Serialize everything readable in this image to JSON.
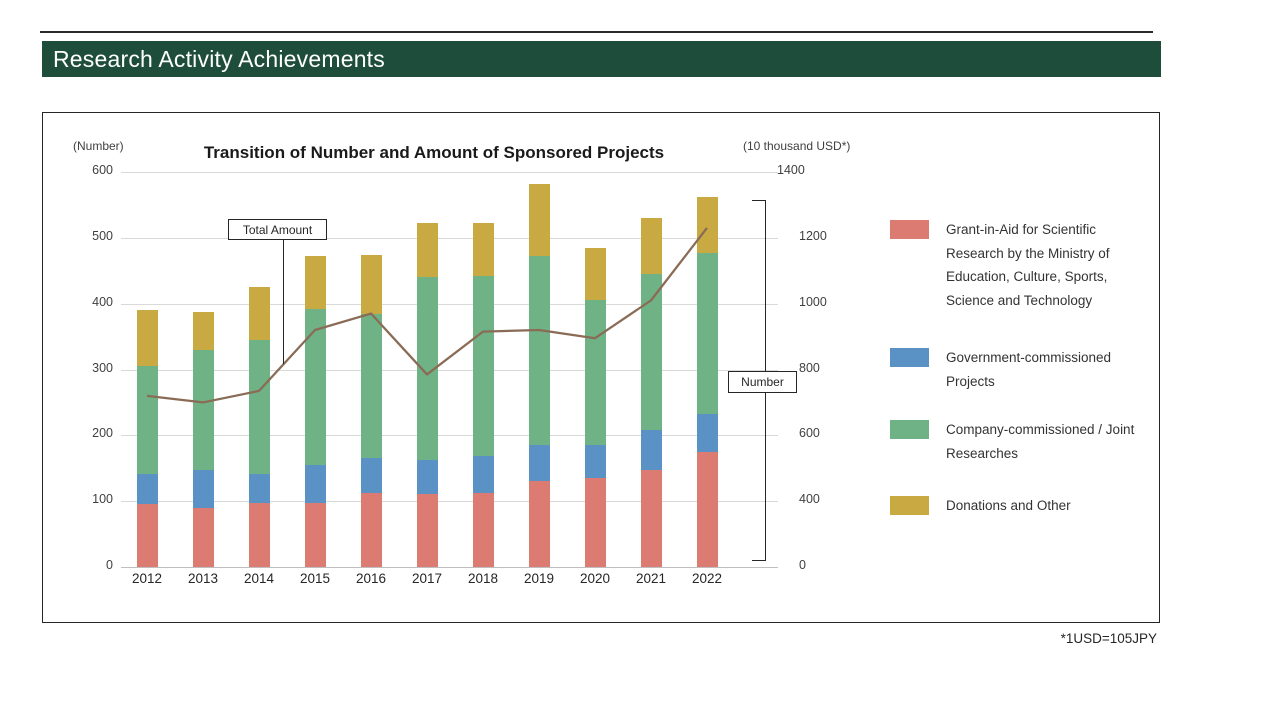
{
  "header": {
    "title": "Research Activity Achievements"
  },
  "footnote": "*1USD=105JPY",
  "chart_data": {
    "type": "bar",
    "subtype": "stacked bars with overlay line, dual axis",
    "title": "Transition of Number and Amount of Sponsored Projects",
    "categories": [
      "2012",
      "2013",
      "2014",
      "2015",
      "2016",
      "2017",
      "2018",
      "2019",
      "2020",
      "2021",
      "2022"
    ],
    "left_axis": {
      "label": "(Number)",
      "ticks": [
        600,
        500,
        400,
        300,
        200,
        100,
        0
      ],
      "range": [
        0,
        600
      ],
      "grid": true
    },
    "right_axis": {
      "label": "(10 thousand USD*)",
      "ticks": [
        1400,
        1200,
        1000,
        800,
        600,
        400,
        0
      ]
    },
    "series": [
      {
        "name": "Grant-in-Aid for Scientific Research by the Ministry of Education, Culture, Sports, Science and Technology",
        "color": "#DB7B72",
        "values": [
          95,
          90,
          97,
          97,
          112,
          111,
          112,
          130,
          135,
          148,
          175
        ]
      },
      {
        "name": "Government-commissioned Projects",
        "color": "#5A92C5",
        "values": [
          47,
          58,
          45,
          58,
          53,
          52,
          56,
          55,
          51,
          60,
          57
        ]
      },
      {
        "name": "Company-commissioned / Joint Researches",
        "color": "#6FB286",
        "values": [
          163,
          182,
          203,
          237,
          220,
          277,
          274,
          288,
          219,
          237,
          245
        ]
      },
      {
        "name": "Donations and Other",
        "color": "#C9A942",
        "values": [
          85,
          58,
          80,
          81,
          89,
          83,
          81,
          109,
          80,
          85,
          85
        ]
      }
    ],
    "bar_totals": [
      390,
      388,
      425,
      473,
      474,
      523,
      523,
      582,
      485,
      530,
      562
    ],
    "line_series": {
      "name": "Total Amount",
      "axis": "right",
      "color": "#8A6B55",
      "values": [
        720,
        700,
        735,
        920,
        970,
        785,
        915,
        920,
        895,
        1010,
        1230
      ]
    },
    "annotations": {
      "line_label": "Total Amount",
      "bar_label": "Number"
    },
    "legend_position": "right"
  },
  "legend": {
    "items": [
      {
        "color": "#DB7B72",
        "lines": [
          "Grant-in-Aid for Scientific",
          "Research by the Ministry of",
          "Education, Culture, Sports,",
          "Science and Technology"
        ]
      },
      {
        "color": "#5A92C5",
        "lines": [
          "Government-commissioned",
          "Projects"
        ]
      },
      {
        "color": "#6FB286",
        "lines": [
          "Company-commissioned /  Joint",
          "Researches"
        ]
      },
      {
        "color": "#C9A942",
        "lines": [
          "Donations and Other"
        ]
      }
    ]
  }
}
